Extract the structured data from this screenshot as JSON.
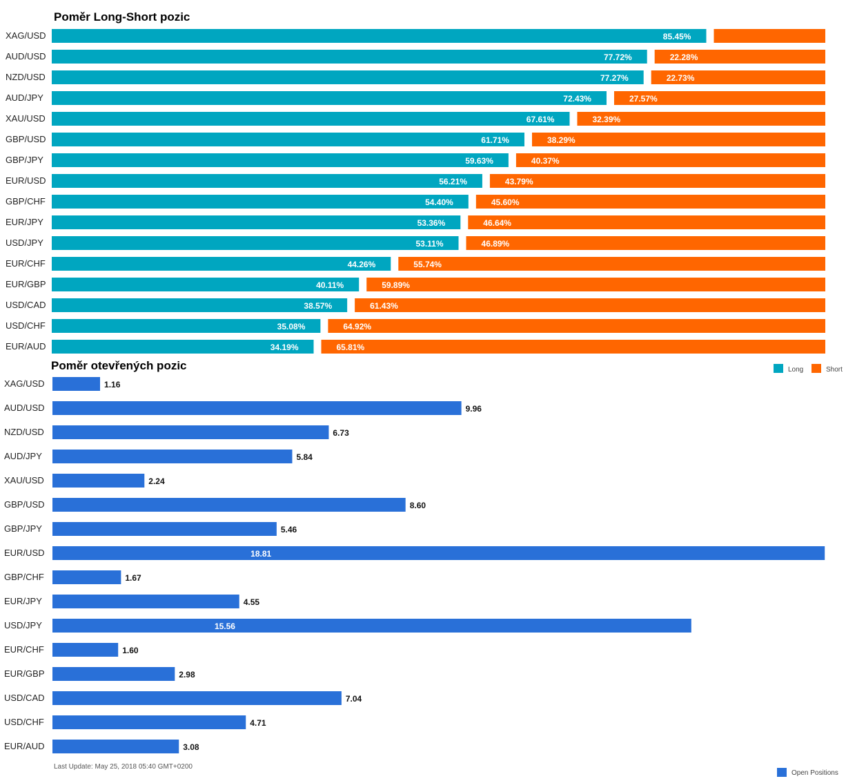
{
  "chart_data": [
    {
      "type": "bar",
      "orientation": "horizontal",
      "stacked": true,
      "title": "Poměr Long-Short pozic",
      "categories": [
        "XAG/USD",
        "AUD/USD",
        "NZD/USD",
        "AUD/JPY",
        "XAU/USD",
        "GBP/USD",
        "GBP/JPY",
        "EUR/USD",
        "GBP/CHF",
        "EUR/JPY",
        "USD/JPY",
        "EUR/CHF",
        "EUR/GBP",
        "USD/CAD",
        "USD/CHF",
        "EUR/AUD"
      ],
      "series": [
        {
          "name": "Long",
          "color": "#00a6c0",
          "values": [
            85.45,
            77.72,
            77.27,
            72.43,
            67.61,
            61.71,
            59.63,
            56.21,
            54.4,
            53.36,
            53.11,
            44.26,
            40.11,
            38.57,
            35.08,
            34.19
          ],
          "labels": [
            "85.45%",
            "77.72%",
            "77.27%",
            "72.43%",
            "67.61%",
            "61.71%",
            "59.63%",
            "56.21%",
            "54.40%",
            "53.36%",
            "53.11%",
            "44.26%",
            "40.11%",
            "38.57%",
            "35.08%",
            "34.19%"
          ]
        },
        {
          "name": "Short",
          "color": "#ff6600",
          "values": [
            14.55,
            22.28,
            22.73,
            27.57,
            32.39,
            38.29,
            40.37,
            43.79,
            45.6,
            46.64,
            46.89,
            55.74,
            59.89,
            61.43,
            64.92,
            65.81
          ],
          "labels": [
            "",
            "22.28%",
            "22.73%",
            "27.57%",
            "32.39%",
            "38.29%",
            "40.37%",
            "43.79%",
            "45.60%",
            "46.64%",
            "46.89%",
            "55.74%",
            "59.89%",
            "61.43%",
            "64.92%",
            "65.81%"
          ]
        }
      ],
      "legend_position": "bottom-right"
    },
    {
      "type": "bar",
      "orientation": "horizontal",
      "title": "Poměr otevřených pozic",
      "categories": [
        "XAG/USD",
        "AUD/USD",
        "NZD/USD",
        "AUD/JPY",
        "XAU/USD",
        "GBP/USD",
        "GBP/JPY",
        "EUR/USD",
        "GBP/CHF",
        "EUR/JPY",
        "USD/JPY",
        "EUR/CHF",
        "EUR/GBP",
        "USD/CAD",
        "USD/CHF",
        "EUR/AUD"
      ],
      "series": [
        {
          "name": "Open Positions",
          "color": "#2970d8",
          "values": [
            1.16,
            9.96,
            6.73,
            5.84,
            2.24,
            8.6,
            5.46,
            18.81,
            1.67,
            4.55,
            15.56,
            1.6,
            2.98,
            7.04,
            4.71,
            3.08
          ],
          "labels": [
            "1.16",
            "9.96",
            "6.73",
            "5.84",
            "2.24",
            "8.60",
            "5.46",
            "18.81",
            "1.67",
            "4.55",
            "15.56",
            "1.60",
            "2.98",
            "7.04",
            "4.71",
            "3.08"
          ]
        }
      ],
      "legend_position": "bottom-right"
    }
  ],
  "footer": {
    "last_update": "Last Update: May 25, 2018 05:40 GMT+0200"
  }
}
